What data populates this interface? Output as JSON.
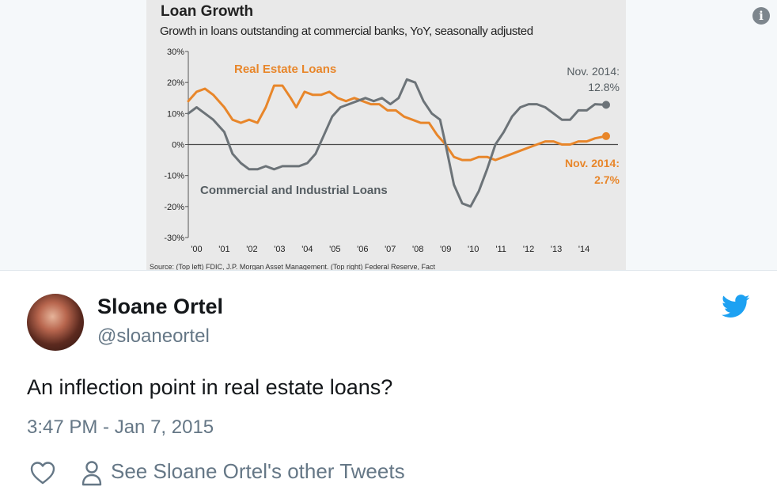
{
  "chart_image": {
    "title": "Loan Growth",
    "subtitle": "Growth in loans outstanding at commercial banks, YoY, seasonally adjusted",
    "source": "Source: (Top left) FDIC, J.P. Morgan Asset Management. (Top right) Federal Reserve, Fact",
    "annotations": {
      "real_estate_label": "Real Estate Loans",
      "ci_label": "Commercial and Industrial Loans",
      "ci_end_label": "Nov. 2014:",
      "ci_end_value": "12.8%",
      "re_end_label": "Nov. 2014:",
      "re_end_value": "2.7%"
    },
    "colors": {
      "real_estate": "#e8862a",
      "commercial_industrial": "#6c7378",
      "zero_line": "#4a4a4a"
    }
  },
  "chart_data": {
    "type": "line",
    "title": "Loan Growth",
    "subtitle": "Growth in loans outstanding at commercial banks, YoY, seasonally adjusted",
    "ylim": [
      -30,
      30
    ],
    "y_ticks": [
      "30%",
      "20%",
      "10%",
      "0%",
      "-10%",
      "-20%",
      "-30%"
    ],
    "y_tick_values": [
      30,
      20,
      10,
      0,
      -10,
      -20,
      -30
    ],
    "x_ticks": [
      "'00",
      "'01",
      "'02",
      "'03",
      "'04",
      "'05",
      "'06",
      "'07",
      "'08",
      "'09",
      "'10",
      "'11",
      "'12",
      "'13",
      "'14"
    ],
    "xlim": [
      1999.7,
      2015.0
    ],
    "series": [
      {
        "name": "Real Estate Loans",
        "x": [
          1999.7,
          2000.0,
          2000.3,
          2000.6,
          2001.0,
          2001.3,
          2001.6,
          2001.9,
          2002.2,
          2002.5,
          2002.8,
          2003.1,
          2003.4,
          2003.6,
          2003.9,
          2004.2,
          2004.5,
          2004.8,
          2005.1,
          2005.4,
          2005.7,
          2006.0,
          2006.3,
          2006.6,
          2006.9,
          2007.2,
          2007.5,
          2007.8,
          2008.1,
          2008.4,
          2008.7,
          2009.0,
          2009.3,
          2009.6,
          2009.9,
          2010.2,
          2010.5,
          2010.8,
          2011.1,
          2011.4,
          2011.7,
          2012.0,
          2012.3,
          2012.6,
          2012.9,
          2013.2,
          2013.5,
          2013.8,
          2014.1,
          2014.4,
          2014.8
        ],
        "values": [
          14,
          17,
          18,
          16,
          12,
          8,
          7,
          8,
          7,
          12,
          19,
          19,
          15,
          12,
          17,
          16,
          16,
          17,
          15,
          14,
          15,
          14,
          13,
          13,
          11,
          11,
          9,
          8,
          7,
          7,
          3,
          0,
          -4,
          -5,
          -5,
          -4,
          -4,
          -5,
          -4,
          -3,
          -2,
          -1,
          0,
          1,
          1,
          0,
          0,
          1,
          1,
          2,
          2.7
        ]
      },
      {
        "name": "Commercial and Industrial Loans",
        "x": [
          1999.7,
          2000.0,
          2000.3,
          2000.6,
          2001.0,
          2001.3,
          2001.6,
          2001.9,
          2002.2,
          2002.5,
          2002.8,
          2003.1,
          2003.4,
          2003.7,
          2004.0,
          2004.3,
          2004.6,
          2004.9,
          2005.2,
          2005.5,
          2005.8,
          2006.1,
          2006.4,
          2006.7,
          2007.0,
          2007.3,
          2007.6,
          2007.9,
          2008.2,
          2008.5,
          2008.8,
          2009.0,
          2009.3,
          2009.6,
          2009.9,
          2010.2,
          2010.5,
          2010.8,
          2011.1,
          2011.4,
          2011.7,
          2012.0,
          2012.3,
          2012.6,
          2012.9,
          2013.2,
          2013.5,
          2013.8,
          2014.1,
          2014.4,
          2014.8
        ],
        "values": [
          10,
          12,
          10,
          8,
          4,
          -3,
          -6,
          -8,
          -8,
          -7,
          -8,
          -7,
          -7,
          -7,
          -6,
          -3,
          3,
          9,
          12,
          13,
          14,
          15,
          14,
          15,
          13,
          15,
          21,
          20,
          14,
          10,
          8,
          0,
          -13,
          -19,
          -20,
          -15,
          -8,
          0,
          4,
          9,
          12,
          13,
          13,
          12,
          10,
          8,
          8,
          11,
          11,
          13,
          12.8
        ]
      }
    ]
  },
  "tweet": {
    "author_name": "Sloane Ortel",
    "author_handle": "@sloaneortel",
    "text": "An inflection point in real estate loans?",
    "timestamp": "3:47 PM - Jan 7, 2015",
    "other_tweets_label": "See Sloane Ortel's other Tweets",
    "info_label": "i"
  },
  "icons": {
    "info": "info-icon",
    "brand": "twitter-bird-icon",
    "like": "heart-icon",
    "profile": "person-icon"
  },
  "colors": {
    "twitter_blue": "#1da1f2",
    "secondary_text": "#657786"
  }
}
